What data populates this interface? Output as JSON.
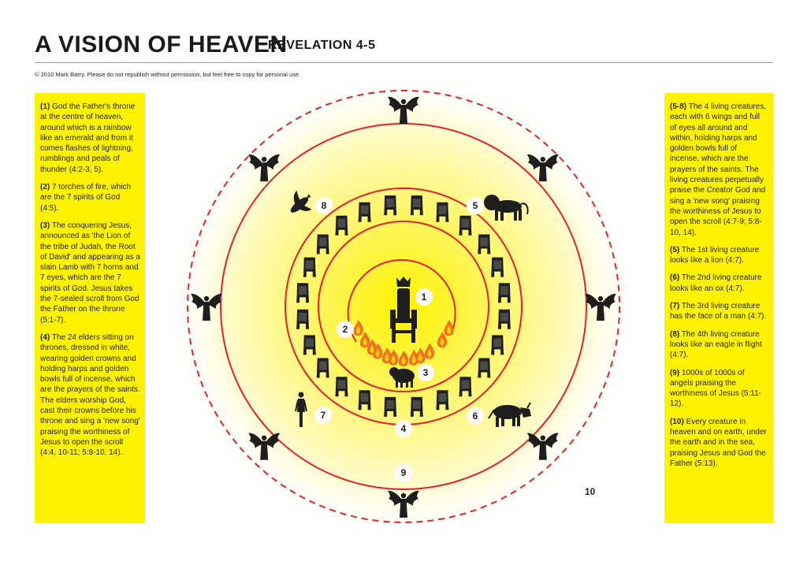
{
  "header": {
    "title": "A VISION OF HEAVEN",
    "subtitle": "REVELATION 4-5",
    "copyright": "© 2010 Mark Barry.  Please do not republish without permission, but feel free to copy for personal use."
  },
  "left_panel": {
    "items": [
      {
        "num": "(1)",
        "text": " God the Father's throne at the centre of heaven, around which is a rainbow like an emerald and from it comes flashes of lightning, rumblings and peals of thunder (4:2-3, 5)."
      },
      {
        "num": "(2)",
        "text": " 7 torches of fire, which are the 7 spirits of God (4:5)."
      },
      {
        "num": "(3)",
        "text": " The conquering Jesus, announced as 'the Lion of the tribe of Judah, the Root of David' and appearing as a slain Lamb with 7 horns and 7 eyes, which are the 7 spirits of God. Jesus takes the 7-sealed scroll from God the Father on the throne (5:1-7)."
      },
      {
        "num": "(4)",
        "text": " The 24 elders sitting on thrones, dressed in white, wearing golden crowns and holding harps and golden bowls full of incense, which are the prayers of the saints. The elders worship God, cast their crowns before his throne and sing a 'new song' praising the worthiness of Jesus to open the scroll (4:4, 10-11; 5:8-10, 14)."
      }
    ]
  },
  "right_panel": {
    "items": [
      {
        "num": "(5-8)",
        "text": " The 4 living creatures, each with 6 wings and full of eyes all around and within, holding harps and golden bowls full of incense, which are the prayers of the saints. The living creatures perpetually praise the Creator God and sing a 'new song' praising the worthiness of Jesus to open the scroll (4:7-9; 5:8-10, 14)."
      },
      {
        "num": "(5)",
        "text": " The 1st living creature looks like a lion (4:7)."
      },
      {
        "num": "(6)",
        "text": " The 2nd living creature looks like an ox (4:7)."
      },
      {
        "num": "(7)",
        "text": " The 3rd living creature has the face of a man (4:7)."
      },
      {
        "num": "(8)",
        "text": " The 4th living creature looks like an eagle in flight (4:7)."
      },
      {
        "num": "(9)",
        "text": " 1000s of 1000s of angels praising the worthiness of Jesus (5:11-12)."
      },
      {
        "num": "(10)",
        "text": " Every creature in heaven and on earth, under the earth and in the sea, praising Jesus and God the Father (5:13)."
      }
    ]
  },
  "diagram": {
    "labels": {
      "throne": "1",
      "torches": "2",
      "lamb": "3",
      "elders": "4",
      "lion": "5",
      "ox": "6",
      "man": "7",
      "eagle": "8",
      "angels": "9",
      "every_creature": "10"
    },
    "elder_count": 24,
    "angel_count": 8,
    "colors": {
      "panel": "#fff200",
      "glow_center": "#fff200",
      "ring": "#e8202a",
      "silhouette": "#1e1e1e",
      "fire_outer": "#f36f21",
      "fire_inner": "#ffd200"
    }
  }
}
